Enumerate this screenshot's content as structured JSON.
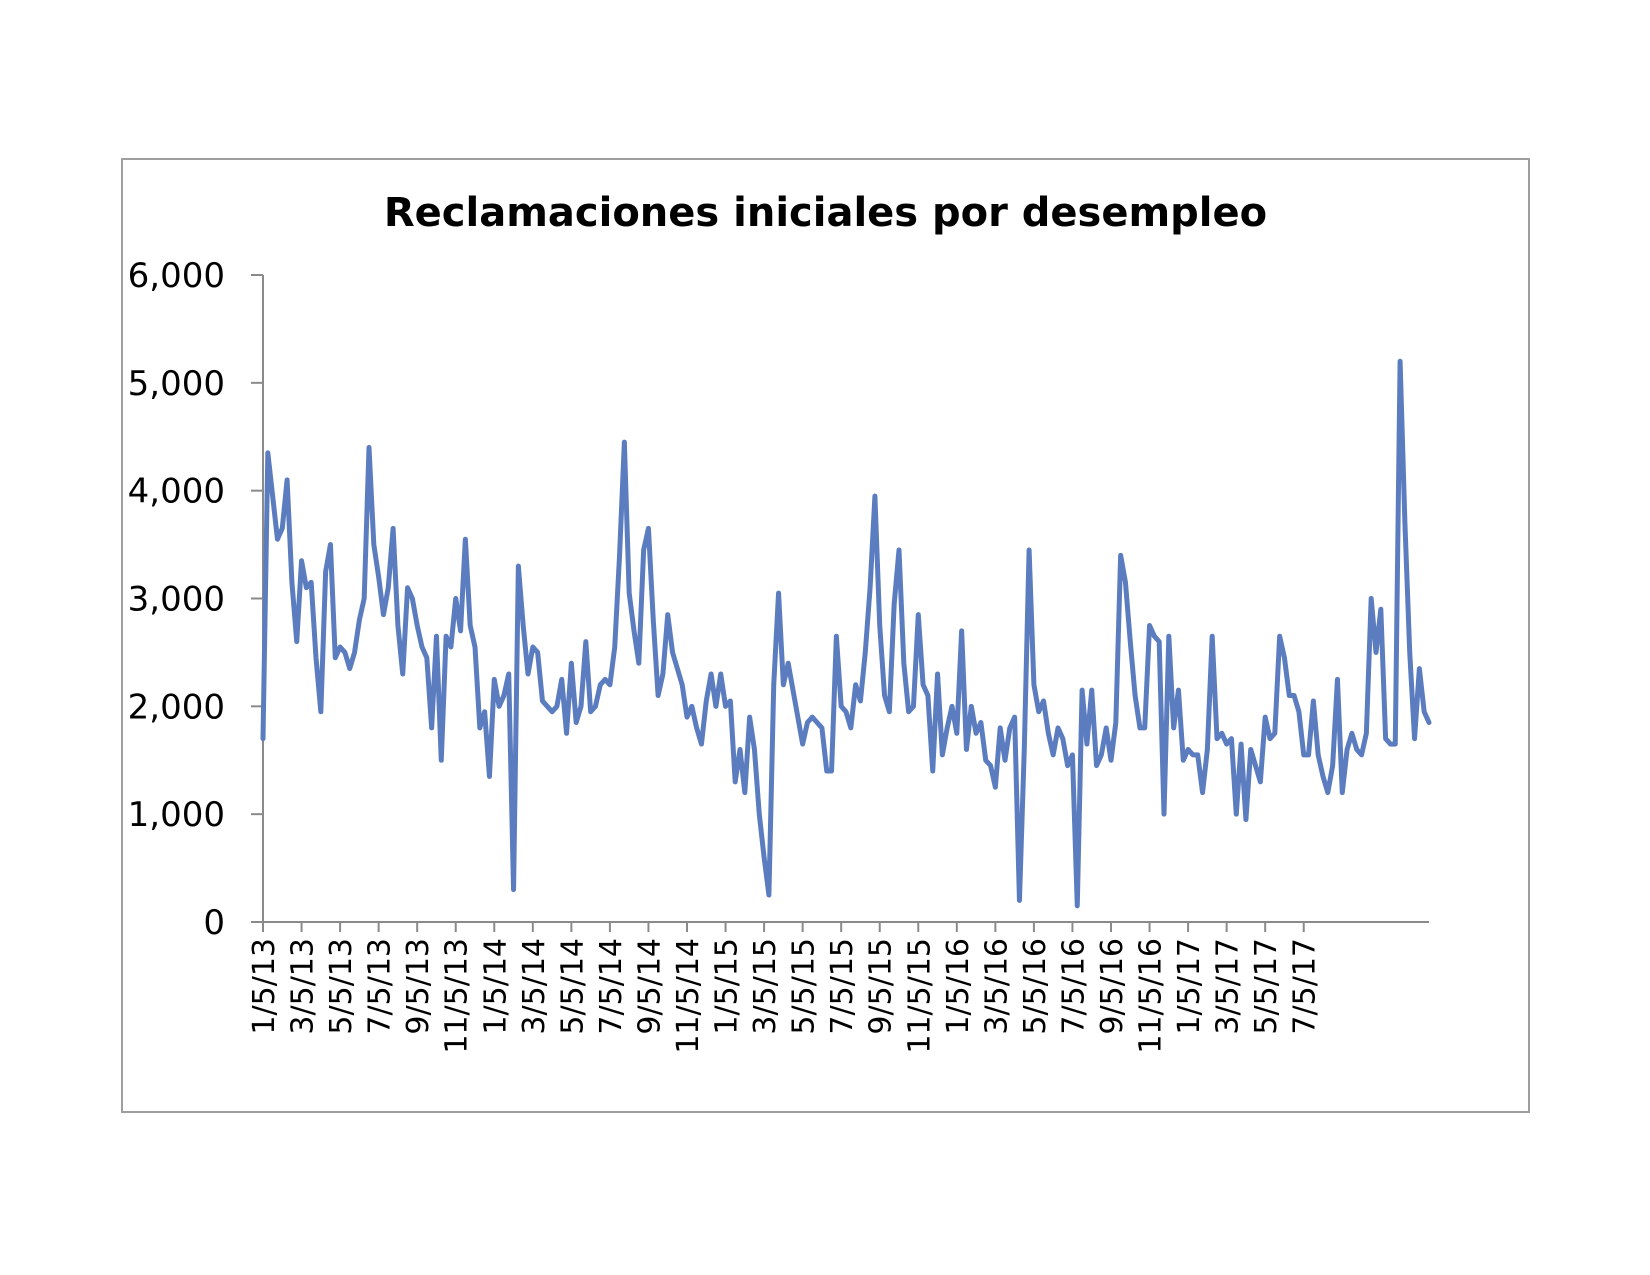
{
  "chart_data": {
    "type": "line",
    "title": "Reclamaciones iniciales por desempleo",
    "xlabel": "",
    "ylabel": "",
    "ylim": [
      0,
      6000
    ],
    "yticks": [
      "0",
      "1,000",
      "2,000",
      "3,000",
      "4,000",
      "5,000",
      "6,000"
    ],
    "ytick_values": [
      0,
      1000,
      2000,
      3000,
      4000,
      5000,
      6000
    ],
    "xtick_labels": [
      "1/5/13",
      "3/5/13",
      "5/5/13",
      "7/5/13",
      "9/5/13",
      "11/5/13",
      "1/5/14",
      "3/5/14",
      "5/5/14",
      "7/5/14",
      "9/5/14",
      "11/5/14",
      "1/5/15",
      "3/5/15",
      "5/5/15",
      "7/5/15",
      "9/5/15",
      "11/5/15",
      "1/5/16",
      "3/5/16",
      "5/5/16",
      "7/5/16",
      "9/5/16",
      "11/5/16",
      "1/5/17",
      "3/5/17",
      "5/5/17",
      "7/5/17"
    ],
    "xtick_positions": [
      0,
      8,
      16,
      24,
      32,
      40,
      48,
      56,
      64,
      72,
      80,
      88,
      96,
      104,
      112,
      120,
      128,
      136,
      144,
      152,
      160,
      168,
      176,
      184,
      192,
      200,
      208,
      216
    ],
    "grid": false,
    "legend": "none",
    "line_color": "#5b7dbf",
    "series": [
      {
        "values": [
          1700,
          4350,
          3950,
          3550,
          3650,
          4100,
          3150,
          2600,
          3350,
          3100,
          3150,
          2450,
          1950,
          3250,
          3500,
          2450,
          2550,
          2500,
          2350,
          2500,
          2800,
          3000,
          4400,
          3500,
          3200,
          2850,
          3100,
          3650,
          2750,
          2300,
          3100,
          3000,
          2750,
          2550,
          2450,
          1800,
          2650,
          1500,
          2650,
          2550,
          3000,
          2700,
          3550,
          2750,
          2550,
          1800,
          1950,
          1350,
          2250,
          2000,
          2100,
          2300,
          300,
          3300,
          2750,
          2300,
          2550,
          2500,
          2050,
          2000,
          1950,
          2000,
          2250,
          1750,
          2400,
          1850,
          2000,
          2600,
          1950,
          2000,
          2200,
          2250,
          2200,
          2550,
          3400,
          4450,
          3050,
          2700,
          2400,
          3450,
          3650,
          2800,
          2100,
          2300,
          2850,
          2500,
          2350,
          2200,
          1900,
          2000,
          1800,
          1650,
          2050,
          2300,
          2000,
          2300,
          2000,
          2050,
          1300,
          1600,
          1200,
          1900,
          1600,
          1000,
          600,
          250,
          2200,
          3050,
          2200,
          2400,
          2150,
          1900,
          1650,
          1850,
          1900,
          1850,
          1800,
          1400,
          1400,
          2650,
          2000,
          1950,
          1800,
          2200,
          2050,
          2500,
          3100,
          3950,
          2750,
          2100,
          1950,
          2950,
          3450,
          2400,
          1950,
          2000,
          2850,
          2200,
          2100,
          1400,
          2300,
          1550,
          1800,
          2000,
          1750,
          2700,
          1600,
          2000,
          1750,
          1850,
          1500,
          1450,
          1250,
          1800,
          1500,
          1800,
          1900,
          200,
          1600,
          3450,
          2200,
          1950,
          2050,
          1750,
          1550,
          1800,
          1700,
          1450,
          1550,
          150,
          2150,
          1650,
          2150,
          1450,
          1550,
          1800,
          1500,
          1850,
          3400,
          3150,
          2600,
          2100,
          1800,
          1800,
          2750,
          2650,
          2600,
          1000,
          2650,
          1800,
          2150,
          1500,
          1600,
          1550,
          1550,
          1200,
          1600,
          2650,
          1700,
          1750,
          1650,
          1700,
          1000,
          1650,
          950,
          1600,
          1450,
          1300,
          1900,
          1700,
          1750,
          2650,
          2450,
          2100,
          2100,
          1950,
          1550,
          1550,
          2050,
          1550,
          1350,
          1200,
          1450,
          2250,
          1200,
          1600,
          1750,
          1600,
          1550,
          1750,
          3000,
          2500,
          2900,
          1700,
          1650,
          1650,
          5200,
          3700,
          2500,
          1700,
          2350,
          1950,
          1850
        ]
      }
    ]
  }
}
